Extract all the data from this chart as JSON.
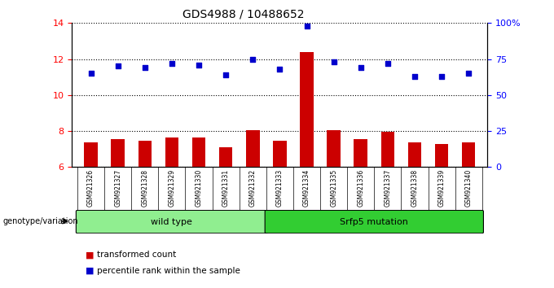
{
  "title": "GDS4988 / 10488652",
  "samples": [
    "GSM921326",
    "GSM921327",
    "GSM921328",
    "GSM921329",
    "GSM921330",
    "GSM921331",
    "GSM921332",
    "GSM921333",
    "GSM921334",
    "GSM921335",
    "GSM921336",
    "GSM921337",
    "GSM921338",
    "GSM921339",
    "GSM921340"
  ],
  "transformed_count": [
    7.35,
    7.55,
    7.45,
    7.65,
    7.65,
    7.1,
    8.05,
    7.45,
    12.4,
    8.05,
    7.55,
    7.95,
    7.35,
    7.3,
    7.35
  ],
  "percentile_rank": [
    65,
    70,
    69,
    72,
    71,
    64,
    75,
    68,
    98,
    73,
    69,
    72,
    63,
    63,
    65
  ],
  "groups": [
    {
      "label": "wild type",
      "color": "#90EE90",
      "start": 0,
      "end": 7
    },
    {
      "label": "Srfp5 mutation",
      "color": "#32CD32",
      "start": 7,
      "end": 15
    }
  ],
  "ylim_left": [
    6,
    14
  ],
  "ylim_right": [
    0,
    100
  ],
  "yticks_left": [
    6,
    8,
    10,
    12,
    14
  ],
  "yticks_right": [
    0,
    25,
    50,
    75,
    100
  ],
  "yticklabels_right": [
    "0",
    "25",
    "50",
    "75",
    "100%"
  ],
  "bar_color": "#CC0000",
  "dot_color": "#0000CC",
  "bar_bottom": 6,
  "legend_items": [
    {
      "label": "transformed count",
      "color": "#CC0000"
    },
    {
      "label": "percentile rank within the sample",
      "color": "#0000CC"
    }
  ],
  "genotype_label": "genotype/variation",
  "background_color": "#ffffff",
  "tick_label_area_color": "#c8c8c8"
}
